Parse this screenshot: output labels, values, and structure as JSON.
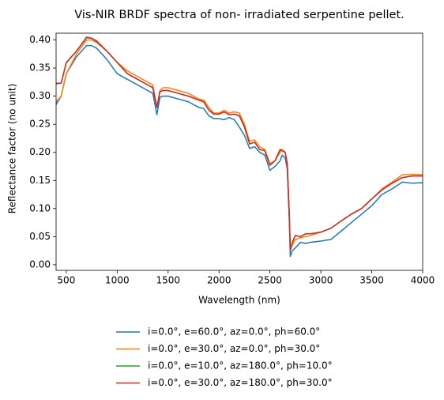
{
  "chart_data": {
    "type": "line",
    "title": "Vis-NIR BRDF spectra of non- irradiated serpentine pellet.",
    "x_label": "Wavelength (nm)",
    "y_label": "Reflectance factor (no unit)",
    "x": [
      400,
      450,
      500,
      600,
      700,
      750,
      800,
      900,
      1000,
      1100,
      1200,
      1300,
      1350,
      1390,
      1420,
      1450,
      1500,
      1600,
      1700,
      1800,
      1850,
      1900,
      1950,
      2000,
      2050,
      2100,
      2150,
      2200,
      2250,
      2300,
      2350,
      2400,
      2450,
      2500,
      2550,
      2600,
      2620,
      2650,
      2670,
      2690,
      2700,
      2720,
      2750,
      2800,
      2850,
      2900,
      3000,
      3100,
      3200,
      3300,
      3400,
      3500,
      3600,
      3700,
      3800,
      3900,
      4000
    ],
    "series": [
      {
        "name": "i=0.0°, e=60.0°, az=0.0°, ph=60.0°",
        "color": "#1f77b4",
        "values": [
          0.285,
          0.3,
          0.34,
          0.37,
          0.39,
          0.39,
          0.385,
          0.365,
          0.34,
          0.33,
          0.32,
          0.31,
          0.305,
          0.267,
          0.298,
          0.3,
          0.3,
          0.295,
          0.29,
          0.28,
          0.278,
          0.265,
          0.26,
          0.26,
          0.258,
          0.262,
          0.258,
          0.245,
          0.23,
          0.207,
          0.21,
          0.2,
          0.195,
          0.168,
          0.175,
          0.185,
          0.195,
          0.19,
          0.17,
          0.08,
          0.015,
          0.025,
          0.03,
          0.04,
          0.038,
          0.04,
          0.042,
          0.045,
          0.06,
          0.075,
          0.09,
          0.105,
          0.125,
          0.135,
          0.147,
          0.145,
          0.146
        ]
      },
      {
        "name": "i=0.0°, e=30.0°, az=0.0°, ph=30.0°",
        "color": "#ff7f0e",
        "values": [
          0.29,
          0.3,
          0.34,
          0.375,
          0.4,
          0.4,
          0.395,
          0.38,
          0.36,
          0.345,
          0.335,
          0.325,
          0.32,
          0.28,
          0.31,
          0.315,
          0.315,
          0.31,
          0.305,
          0.295,
          0.293,
          0.28,
          0.27,
          0.27,
          0.275,
          0.27,
          0.272,
          0.27,
          0.25,
          0.22,
          0.222,
          0.21,
          0.205,
          0.18,
          0.185,
          0.2,
          0.205,
          0.2,
          0.18,
          0.09,
          0.028,
          0.035,
          0.045,
          0.048,
          0.05,
          0.052,
          0.058,
          0.065,
          0.078,
          0.09,
          0.1,
          0.117,
          0.135,
          0.147,
          0.16,
          0.161,
          0.16
        ]
      },
      {
        "name": "i=0.0°, e=10.0°, az=180.0°, ph=10.0°",
        "color": "#2ca02c",
        "values": [
          0.322,
          0.323,
          0.359,
          0.38,
          0.404,
          0.403,
          0.397,
          0.38,
          0.36,
          0.34,
          0.33,
          0.32,
          0.315,
          0.28,
          0.308,
          0.31,
          0.31,
          0.305,
          0.3,
          0.293,
          0.29,
          0.275,
          0.268,
          0.268,
          0.272,
          0.267,
          0.268,
          0.265,
          0.245,
          0.215,
          0.218,
          0.205,
          0.203,
          0.177,
          0.185,
          0.205,
          0.203,
          0.2,
          0.18,
          0.09,
          0.025,
          0.04,
          0.052,
          0.05,
          0.055,
          0.055,
          0.058,
          0.065,
          0.078,
          0.09,
          0.1,
          0.117,
          0.133,
          0.145,
          0.155,
          0.158,
          0.158
        ]
      },
      {
        "name": "i=0.0°, e=30.0°, az=180.0°, ph=30.0°",
        "color": "#d62728",
        "values": [
          0.323,
          0.323,
          0.36,
          0.38,
          0.405,
          0.403,
          0.398,
          0.38,
          0.36,
          0.34,
          0.33,
          0.32,
          0.315,
          0.28,
          0.308,
          0.31,
          0.31,
          0.305,
          0.3,
          0.293,
          0.29,
          0.275,
          0.268,
          0.268,
          0.272,
          0.267,
          0.268,
          0.265,
          0.245,
          0.215,
          0.218,
          0.205,
          0.203,
          0.177,
          0.185,
          0.205,
          0.203,
          0.2,
          0.18,
          0.09,
          0.025,
          0.04,
          0.052,
          0.05,
          0.055,
          0.055,
          0.058,
          0.065,
          0.078,
          0.09,
          0.1,
          0.117,
          0.133,
          0.145,
          0.155,
          0.158,
          0.158
        ]
      }
    ],
    "xlim": [
      400,
      4000
    ],
    "ylim": [
      -0.01,
      0.412
    ],
    "xticks": [
      500,
      1000,
      1500,
      2000,
      2500,
      3000,
      3500,
      4000
    ],
    "yticks": [
      {
        "value": 0,
        "label": "0.00"
      },
      0.05,
      {
        "value": 0.1,
        "label": "0.10"
      },
      0.15,
      {
        "value": 0.2,
        "label": "0.20"
      },
      0.25,
      {
        "value": 0.3,
        "label": "0.30"
      },
      0.35,
      {
        "value": 0.4,
        "label": "0.40"
      }
    ],
    "grid": false,
    "legend": "below"
  }
}
